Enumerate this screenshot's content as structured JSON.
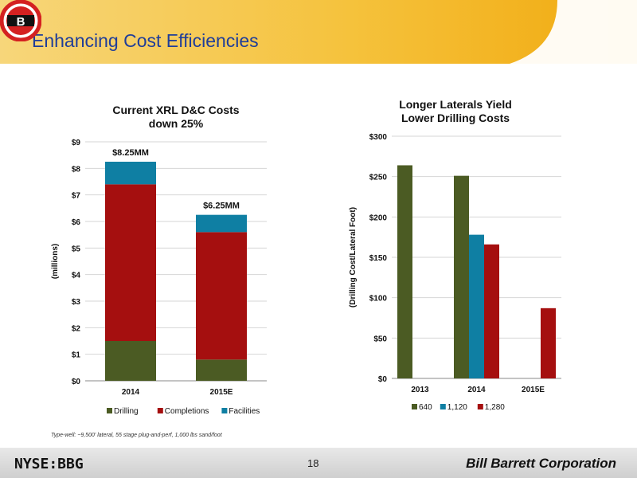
{
  "page": {
    "title": "Enhancing Cost Efficiencies",
    "logo_letter": "B",
    "footnote": "Type-well: ~9,500' lateral, 55 stage plug-and-perf, 1,000 lbs sand/foot",
    "footer": {
      "ticker": "NYSE:BBG",
      "page_number": "18",
      "company": "Bill Barrett Corporation"
    },
    "colors": {
      "title": "#1f3d99",
      "header_accent": "#f5b21c",
      "logo_red": "#d42121"
    }
  },
  "chart_data": [
    {
      "type": "bar",
      "stacked": true,
      "title": "Current XRL D&C Costs down 25%",
      "title_lines": [
        "Current XRL D&C Costs",
        "down 25%"
      ],
      "xlabel": "",
      "ylabel": "(millions)",
      "ylim": [
        0,
        9
      ],
      "yticks": [
        "$0",
        "$1",
        "$2",
        "$3",
        "$4",
        "$5",
        "$6",
        "$7",
        "$8",
        "$9"
      ],
      "categories": [
        "2014",
        "2015E"
      ],
      "series": [
        {
          "name": "Drilling",
          "color": "#4b5b23",
          "values": [
            1.5,
            0.8
          ]
        },
        {
          "name": "Completions",
          "color": "#a50f0f",
          "values": [
            5.9,
            4.8
          ]
        },
        {
          "name": "Facilities",
          "color": "#0f7fa3",
          "values": [
            0.85,
            0.65
          ]
        }
      ],
      "total_labels": [
        "$8.25MM",
        "$6.25MM"
      ],
      "legend": "bottom",
      "grid": true
    },
    {
      "type": "bar",
      "stacked": false,
      "title": "Longer Laterals Yield Lower Drilling Costs",
      "title_lines": [
        "Longer Laterals Yield",
        "Lower Drilling Costs"
      ],
      "xlabel": "",
      "ylabel": "(Drilling Cost/Lateral Foot)",
      "ylim": [
        0,
        300
      ],
      "yticks": [
        "$0",
        "$50",
        "$100",
        "$150",
        "$200",
        "$250",
        "$300"
      ],
      "categories": [
        "2013",
        "2014",
        "2015E"
      ],
      "series": [
        {
          "name": "640",
          "color": "#4b5b23",
          "values": [
            264,
            251,
            null
          ]
        },
        {
          "name": "1,120",
          "color": "#0f7fa3",
          "values": [
            null,
            178,
            null
          ]
        },
        {
          "name": "1,280",
          "color": "#a50f0f",
          "values": [
            null,
            166,
            87
          ]
        }
      ],
      "legend": "bottom",
      "grid": true
    }
  ]
}
